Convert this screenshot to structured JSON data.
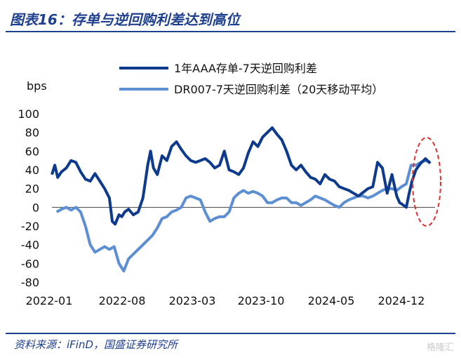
{
  "title": "图表16：存单与逆回购利差达到高位",
  "source": "资料来源：iFinD，国盛证券研究所",
  "watermark": "格隆汇",
  "colors": {
    "accent": "#1f3f8f",
    "series1": "#0d3a8c",
    "series2": "#5b8ed2",
    "highlight": "#e03030"
  },
  "chart_data": {
    "type": "line",
    "title": "存单与逆回购利差达到高位",
    "ylabel": "bps",
    "xlabel": "",
    "ylim": [
      -80,
      100
    ],
    "yticks": [
      100,
      80,
      60,
      40,
      20,
      0,
      -20,
      -40,
      -60,
      -80
    ],
    "xticks": [
      "2022-01",
      "2022-08",
      "2023-03",
      "2023-10",
      "2024-05",
      "2024-12"
    ],
    "xrange": [
      0,
      40
    ],
    "series": [
      {
        "name": "1年AAA存单-7天逆回购利差",
        "x": [
          0,
          0.3,
          0.6,
          1,
          1.5,
          2,
          2.5,
          3,
          3.5,
          4,
          4.5,
          5,
          5.5,
          6,
          6.3,
          6.6,
          7,
          7.3,
          7.6,
          8,
          8.5,
          9,
          9.5,
          10,
          10.3,
          10.6,
          11,
          11.5,
          12,
          12.5,
          13,
          13.5,
          14,
          14.5,
          15,
          15.5,
          16,
          16.5,
          17,
          17.5,
          18,
          18.5,
          19,
          19.5,
          20,
          20.5,
          21,
          21.5,
          22,
          22.5,
          23,
          23.5,
          24,
          24.5,
          25,
          25.5,
          26,
          26.5,
          27,
          27.5,
          28,
          28.5,
          29,
          29.5,
          30,
          30.5,
          31,
          31.5,
          32,
          32.5,
          33,
          33.5,
          34,
          34.5,
          35,
          35.5,
          36,
          36.3,
          36.6,
          37,
          37.3,
          37.6,
          38,
          38.5,
          39,
          39.5
        ],
        "values": [
          35,
          45,
          32,
          38,
          42,
          50,
          48,
          38,
          30,
          28,
          36,
          28,
          20,
          10,
          -15,
          -18,
          -8,
          -10,
          -5,
          -2,
          -8,
          -5,
          10,
          45,
          60,
          42,
          35,
          55,
          50,
          65,
          70,
          62,
          55,
          50,
          48,
          50,
          52,
          48,
          42,
          45,
          60,
          40,
          38,
          35,
          42,
          58,
          70,
          65,
          75,
          80,
          85,
          78,
          72,
          60,
          45,
          40,
          45,
          38,
          32,
          30,
          25,
          35,
          30,
          28,
          22,
          20,
          18,
          15,
          12,
          16,
          20,
          22,
          48,
          42,
          15,
          35,
          12,
          5,
          3,
          0,
          15,
          28,
          40,
          47,
          52,
          47
        ]
      },
      {
        "name": "DR007-7天逆回购利差（20天移动平均）",
        "x": [
          0.5,
          1,
          1.5,
          2,
          2.5,
          3,
          3.5,
          4,
          4.5,
          5,
          5.5,
          6,
          6.5,
          7,
          7.5,
          8,
          8.5,
          9,
          9.5,
          10,
          10.5,
          11,
          11.5,
          12,
          12.5,
          13,
          13.5,
          14,
          14.5,
          15,
          15.5,
          16,
          16.5,
          17,
          17.5,
          18,
          18.5,
          19,
          19.5,
          20,
          20.5,
          21,
          21.5,
          22,
          22.5,
          23,
          23.5,
          24,
          24.5,
          25,
          25.5,
          26,
          26.5,
          27,
          27.5,
          28,
          28.5,
          29,
          29.5,
          30,
          30.5,
          31,
          31.5,
          32,
          32.5,
          33,
          33.5,
          34,
          34.5,
          35,
          35.5,
          36,
          36.5,
          37,
          37.5,
          38,
          38.5,
          39,
          39.5
        ],
        "values": [
          -5,
          -2,
          0,
          -3,
          0,
          -5,
          -20,
          -40,
          -48,
          -45,
          -42,
          -45,
          -42,
          -60,
          -68,
          -55,
          -50,
          -45,
          -40,
          -35,
          -30,
          -22,
          -12,
          -10,
          -5,
          -3,
          0,
          10,
          12,
          10,
          8,
          -5,
          -15,
          -12,
          -10,
          -10,
          -5,
          10,
          15,
          18,
          15,
          17,
          15,
          12,
          5,
          5,
          8,
          10,
          10,
          5,
          5,
          2,
          5,
          8,
          12,
          10,
          8,
          5,
          2,
          0,
          5,
          8,
          10,
          12,
          12,
          10,
          12,
          15,
          18,
          20,
          20,
          18,
          22,
          25,
          45,
          45,
          48,
          50,
          48
        ]
      }
    ],
    "legend": [
      "1年AAA存单-7天逆回购利差",
      "DR007-7天逆回购利差（20天移动平均）"
    ],
    "legend_position": "top"
  }
}
